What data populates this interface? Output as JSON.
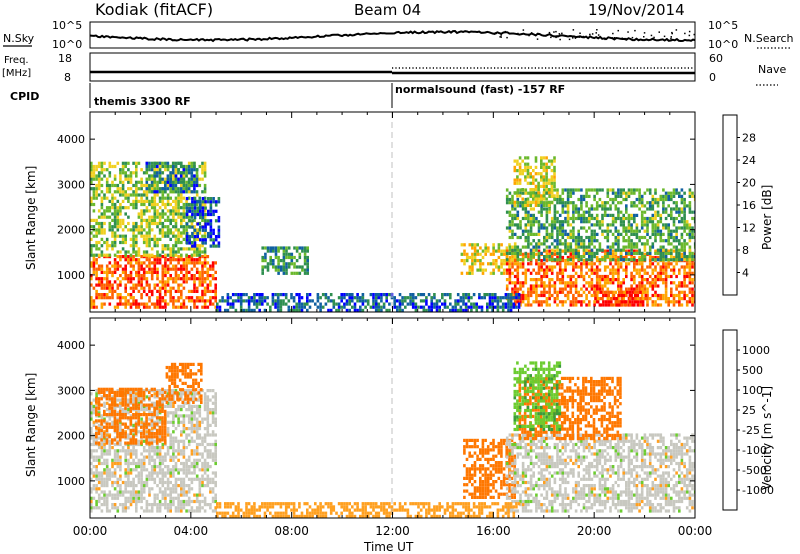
{
  "header": {
    "station": "Kodiak (fitACF)",
    "beam": "Beam 04",
    "date": "19/Nov/2014"
  },
  "side_labels": {
    "nsky": "N.Sky",
    "freq_top": "Freq.",
    "freq_bottom": "[MHz]",
    "cpid": "CPID",
    "nsearch": "N.Search",
    "nave": "Nave"
  },
  "strip_ticks": {
    "nsky_top": "10^5",
    "nsky_bottom": "10^0",
    "freq_top": "18",
    "freq_bottom": "8",
    "nave_top": "60",
    "nave_bottom": "0"
  },
  "cpid_segments": [
    {
      "label": "themis 3300 RF",
      "start_hour": 0
    },
    {
      "label": "normalsound (fast) -157 RF",
      "start_hour": 12
    }
  ],
  "colors": {
    "power_scale": [
      "#0000ff",
      "#1060a0",
      "#2f8f4f",
      "#6ab82c",
      "#f0d020",
      "#ffa500",
      "#ff6000",
      "#ff0000"
    ],
    "velocity_scale": [
      "#ff0000",
      "#ff3a00",
      "#ff7700",
      "#ffa020",
      "#c8c8c0",
      "#c8c8c0",
      "#6ccc30",
      "#3a9c3a",
      "#2a70a0",
      "#1f3fcc"
    ],
    "ground_scatter": "#c8c8c0",
    "marker_line": "#c0c0c0"
  },
  "chart_data": [
    {
      "type": "heatmap",
      "name": "power",
      "xlabel": "",
      "ylabel": "Slant Range [km]",
      "xlim": [
        0,
        24
      ],
      "ylim": [
        180,
        4600
      ],
      "yticks": [
        "1000",
        "2000",
        "3000",
        "4000"
      ],
      "colorbar_label": "Power [dB]",
      "colorbar_ticks": [
        "4",
        "8",
        "12",
        "16",
        "20",
        "24",
        "28"
      ],
      "blobs": [
        {
          "t0": 0.0,
          "t1": 5.0,
          "r0": 250,
          "r1": 1400,
          "v": 26
        },
        {
          "t0": 0.0,
          "t1": 4.6,
          "r0": 1400,
          "r1": 3500,
          "v": 15
        },
        {
          "t0": 2.2,
          "t1": 4.2,
          "r0": 2800,
          "r1": 3500,
          "v": 8
        },
        {
          "t0": 3.8,
          "t1": 5.1,
          "r0": 1600,
          "r1": 2700,
          "v": 5
        },
        {
          "t0": 6.8,
          "t1": 8.6,
          "r0": 1000,
          "r1": 1600,
          "v": 10
        },
        {
          "t0": 14.7,
          "t1": 16.6,
          "r0": 1000,
          "r1": 1700,
          "v": 19
        },
        {
          "t0": 16.5,
          "t1": 24.0,
          "r0": 300,
          "r1": 1500,
          "v": 25
        },
        {
          "t0": 16.5,
          "t1": 24.0,
          "r0": 1300,
          "r1": 2900,
          "v": 12
        },
        {
          "t0": 16.8,
          "t1": 18.4,
          "r0": 2500,
          "r1": 3600,
          "v": 17
        },
        {
          "t0": 20.0,
          "t1": 22.0,
          "r0": 300,
          "r1": 600,
          "v": 28
        },
        {
          "t0": 5.0,
          "t1": 17.0,
          "r0": 180,
          "r1": 600,
          "v": 6
        }
      ]
    },
    {
      "type": "heatmap",
      "name": "velocity",
      "xlabel": "Time UT",
      "ylabel": "Slant Range [km]",
      "xlim": [
        0,
        24
      ],
      "ylim": [
        180,
        4600
      ],
      "xticks": [
        "00:00",
        "04:00",
        "08:00",
        "12:00",
        "16:00",
        "20:00",
        "00:00"
      ],
      "yticks": [
        "1000",
        "2000",
        "3000",
        "4000"
      ],
      "colorbar_label": "Velocity [m s^-1]",
      "colorbar_ticks": [
        "-1000",
        "-500",
        "-100",
        "-25",
        "25",
        "100",
        "500",
        "1000"
      ],
      "blobs": [
        {
          "t0": 0.0,
          "t1": 5.0,
          "r0": 300,
          "r1": 3000,
          "v": 0
        },
        {
          "t0": 0.2,
          "t1": 3.0,
          "r0": 1800,
          "r1": 3000,
          "v": -150
        },
        {
          "t0": 3.0,
          "t1": 4.4,
          "r0": 2700,
          "r1": 3600,
          "v": -300
        },
        {
          "t0": 14.8,
          "t1": 16.8,
          "r0": 600,
          "r1": 1900,
          "v": -250
        },
        {
          "t0": 16.5,
          "t1": 24.0,
          "r0": 300,
          "r1": 2000,
          "v": 0
        },
        {
          "t0": 17.0,
          "t1": 21.0,
          "r0": 1900,
          "r1": 3300,
          "v": -400
        },
        {
          "t0": 16.8,
          "t1": 18.6,
          "r0": 2100,
          "r1": 3600,
          "v": 80
        },
        {
          "t0": 5.0,
          "t1": 17.0,
          "r0": 180,
          "r1": 500,
          "v": -60
        }
      ]
    }
  ]
}
